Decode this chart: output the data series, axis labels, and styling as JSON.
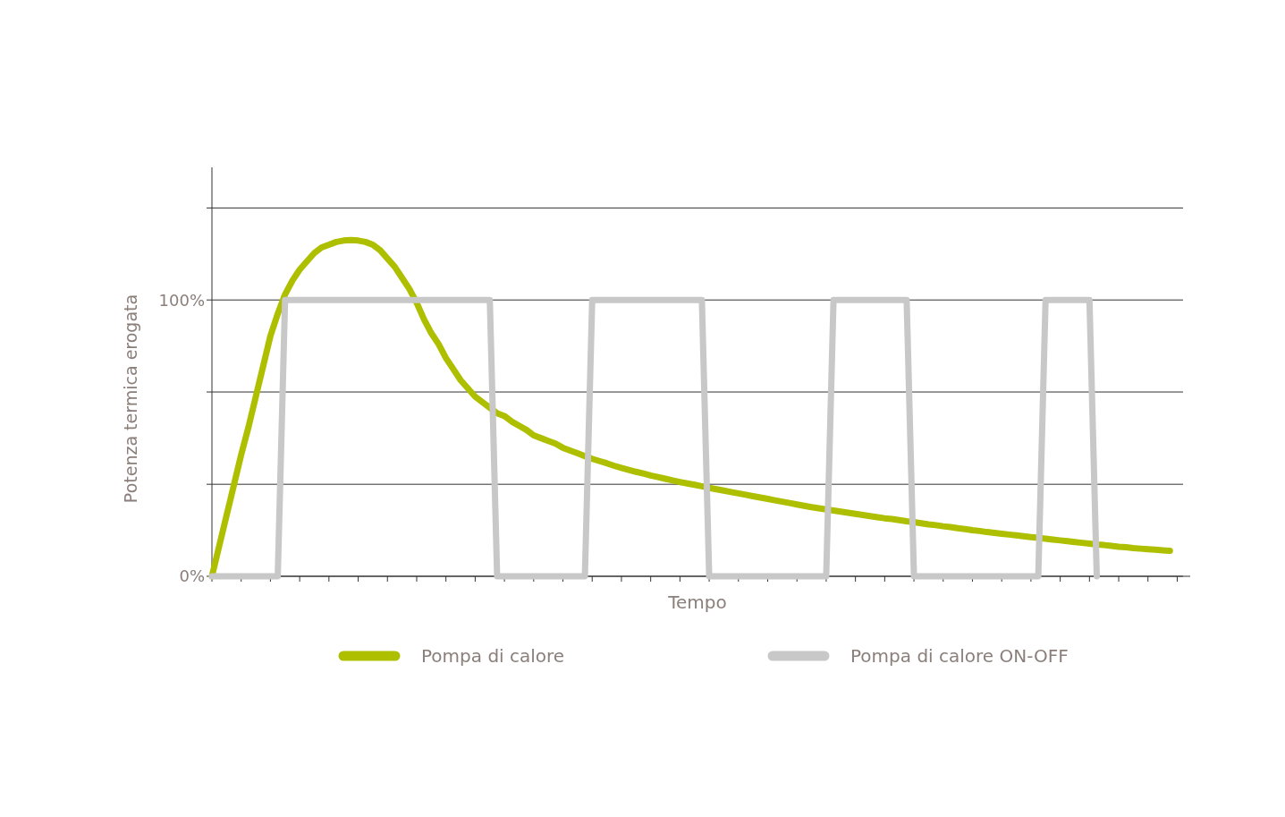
{
  "chart_data": {
    "type": "line",
    "xlabel": "Tempo",
    "ylabel": "Potenza termica erogata",
    "categories": [
      null,
      null,
      null,
      null,
      null,
      null,
      null,
      null,
      null,
      null,
      null,
      null,
      null,
      null,
      null,
      null,
      null,
      null,
      null,
      null,
      null,
      null,
      null,
      null,
      null,
      null,
      null,
      null,
      null,
      null,
      null,
      null,
      null,
      null,
      null,
      null,
      null,
      null,
      null,
      null,
      null,
      null,
      null,
      null,
      null,
      null,
      null,
      null,
      null,
      null,
      null,
      null,
      null,
      null,
      null,
      null,
      null,
      null,
      null,
      null,
      null,
      null,
      null,
      null,
      null,
      null,
      null,
      null,
      null,
      null,
      null,
      null,
      null,
      null,
      null,
      null,
      null,
      null,
      null,
      null,
      null,
      null,
      null,
      null,
      null,
      null,
      null,
      null,
      null,
      null,
      null,
      null,
      null,
      null,
      null,
      null,
      null,
      null,
      null,
      null,
      null,
      null,
      null,
      null,
      null,
      null,
      null,
      null,
      null,
      null,
      null,
      null,
      null,
      null,
      null,
      null,
      null,
      null,
      null,
      null,
      null,
      null,
      null,
      null,
      null,
      null,
      null,
      null,
      null,
      null,
      null,
      null,
      null
    ],
    "ylim": [
      0,
      148
    ],
    "yticks": [
      {
        "value": 0,
        "label": "0%"
      },
      {
        "value": 33.3,
        "label": null
      },
      {
        "value": 66.7,
        "label": null
      },
      {
        "value": 100,
        "label": "100%"
      },
      {
        "value": 133.3,
        "label": null
      }
    ],
    "tick_labels": "y",
    "grid": "y",
    "legend": "bottom",
    "line_style": "solid",
    "marker": "none",
    "series": [
      {
        "name": "Pompa di calore",
        "color": "#aebf00",
        "values": [
          0,
          11,
          22,
          33,
          44,
          54,
          65,
          76,
          87,
          95,
          102,
          107,
          111,
          114,
          117,
          119,
          120,
          121,
          121.5,
          121.7,
          121.5,
          121,
          120,
          118,
          115,
          112,
          108,
          104,
          99,
          93,
          88,
          84,
          79,
          75,
          71,
          68,
          65,
          63,
          61,
          59,
          58,
          56,
          54.5,
          53,
          51,
          50,
          49,
          48,
          46.5,
          45.5,
          44.5,
          43.5,
          42.5,
          41.7,
          40.9,
          40,
          39.2,
          38.5,
          37.8,
          37.2,
          36.5,
          35.9,
          35.3,
          34.7,
          34.1,
          33.6,
          33.1,
          32.6,
          32,
          31.5,
          31,
          30.5,
          30,
          29.5,
          29,
          28.5,
          28,
          27.5,
          27,
          26.5,
          26,
          25.5,
          25,
          24.6,
          24.2,
          23.8,
          23.4,
          23,
          22.6,
          22.2,
          21.8,
          21.4,
          21,
          20.7,
          20.3,
          19.9,
          19.6,
          19.2,
          18.8,
          18.5,
          18.1,
          17.8,
          17.4,
          17.1,
          16.7,
          16.4,
          16,
          15.7,
          15.4,
          15.1,
          14.8,
          14.5,
          14.2,
          13.9,
          13.6,
          13.3,
          13,
          12.7,
          12.4,
          12.1,
          11.8,
          11.5,
          11.3,
          11,
          10.7,
          10.5,
          10.2,
          10,
          9.8,
          9.6,
          9.4,
          9.2,
          null
        ]
      },
      {
        "name": "Pompa di calore ON-OFF",
        "color": "#c8c8c8",
        "values": [
          0,
          0,
          0,
          0,
          0,
          0,
          0,
          0,
          0,
          0,
          100,
          100,
          100,
          100,
          100,
          100,
          100,
          100,
          100,
          100,
          100,
          100,
          100,
          100,
          100,
          100,
          100,
          100,
          100,
          100,
          100,
          100,
          100,
          100,
          100,
          100,
          100,
          100,
          100,
          0,
          0,
          0,
          0,
          0,
          0,
          0,
          0,
          0,
          0,
          0,
          0,
          0,
          100,
          100,
          100,
          100,
          100,
          100,
          100,
          100,
          100,
          100,
          100,
          100,
          100,
          100,
          100,
          100,
          0,
          0,
          0,
          0,
          0,
          0,
          0,
          0,
          0,
          0,
          0,
          0,
          0,
          0,
          0,
          0,
          0,
          100,
          100,
          100,
          100,
          100,
          100,
          100,
          100,
          100,
          100,
          100,
          0,
          0,
          0,
          0,
          0,
          0,
          0,
          0,
          0,
          0,
          0,
          0,
          0,
          0,
          0,
          0,
          0,
          0,
          100,
          100,
          100,
          100,
          100,
          100,
          100,
          0,
          null,
          null,
          null,
          null,
          null,
          null,
          null,
          null,
          null,
          null,
          null
        ]
      }
    ]
  }
}
